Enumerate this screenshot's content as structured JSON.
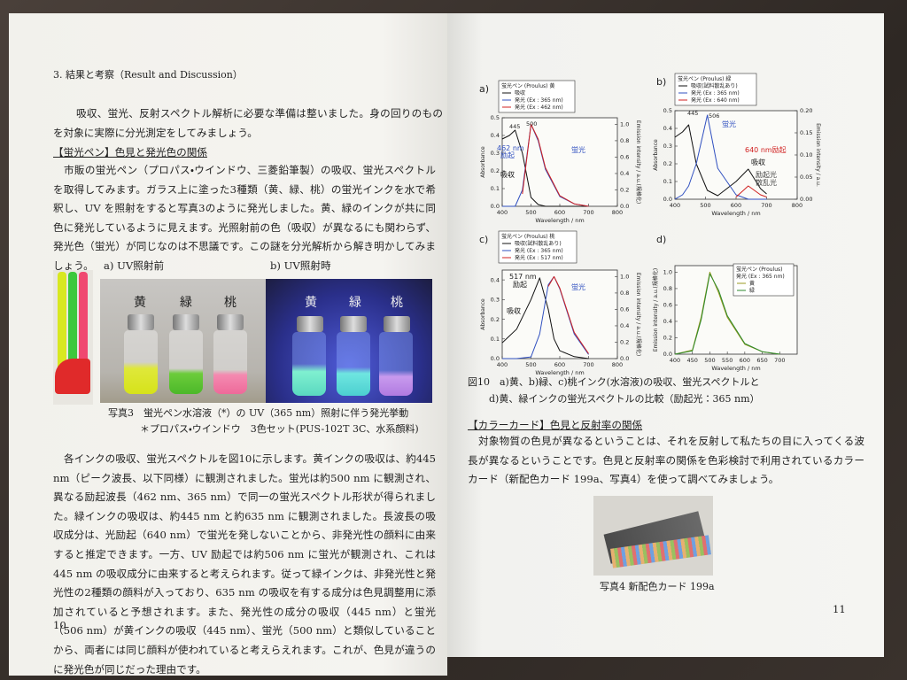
{
  "left_page": {
    "heading": "3. 結果と考察（Result and Discussion）",
    "intro": "吸収、蛍光、反射スペクトル解析に必要な準備は整いました。身の回りのものを対象に実際に分光測定をしてみましょう。",
    "section_title": "【蛍光ペン】色見と発光色の関係",
    "section_body": "市販の蛍光ペン（プロパス・ウインドウ、三菱鉛筆製）の吸収、蛍光スペクトルを取得してみます。ガラス上に塗った3種類（黄、緑、桃）の蛍光インクを水で希釈し、UV を照射をすると写真3のように発光しました。黄、緑のインクが共に同色に発光しているように見えます。光照射前の色（吸収）が異なるにも関わらず、発光色（蛍光）が同じなのは不思議です。この謎を分光解析から解き明かしてみましょう。",
    "photo3": {
      "label_a": "a) UV照射前",
      "label_b": "b) UV照射時",
      "bottles": [
        "黄",
        "緑",
        "桃"
      ],
      "caption": [
        "写真3　蛍光ペン水溶液（*）の UV（365 nm）照射に伴う発光挙動",
        "＊プロパス・ウインドウ　3色セット(PUS-102T 3C、水系顔料)"
      ]
    },
    "body": "各インクの吸収、蛍光スペクトルを図10に示します。黄インクの吸収は、約445 nm（ピーク波長、以下同様）に観測されました。蛍光は約500 nm に観測され、異なる励起波長（462 nm、365 nm）で同一の蛍光スペクトル形状が得られました。緑インクの吸収は、約445 nm と約635 nm に観測されました。長波長の吸収成分は、光励起（640 nm）で蛍光を発しないことから、非発光性の顔料に由来すると推定できます。一方、UV 励起では約506 nm に蛍光が観測され、これは445 nm の吸収成分に由来すると考えられます。従って緑インクは、非発光性と発光性の2種類の顔料が入っており、635 nm の吸収を有する成分は色見調整用に添加されていると予想されます。また、発光性の成分の吸収（445 nm）と蛍光（506 nm）が黄インクの吸収（445 nm）、蛍光（500 nm）と類似していることから、両者には同じ顔料が使われていると考えらえれます。これが、色見が違うのに発光色が同じだった理由です。",
    "page_number": "10"
  },
  "right_page": {
    "figure_caption": [
      "図10　a)黄、b)緑、c)桃インク(水溶液)の吸収、蛍光スペクトルと",
      "d)黄、緑インクの蛍光スペクトルの比較（励起光：365 nm）"
    ],
    "section_title": "【カラーカード】色見と反射率の関係",
    "section_body": "対象物質の色見が異なるということは、それを反射して私たちの目に入ってくる波長が異なるということです。色見と反射率の関係を色彩検討で利用されているカラーカード（新配色カード 199a、写真4）を使って調べてみましょう。",
    "photo4_caption": "写真4 新配色カード 199a",
    "page_number": "11"
  },
  "chart_data": [
    {
      "type": "line",
      "panel": "a)",
      "legend_title": [
        "蛍光ペン (Proulus) 黄"
      ],
      "xlabel": "Wavelength / nm",
      "ylabel": "Absorbance",
      "y2label": "Emission intensity / a.u.(規格化)",
      "xlim": [
        400,
        800
      ],
      "xticks": [
        400,
        500,
        600,
        700,
        800
      ],
      "ylim": [
        0,
        0.5
      ],
      "yticks": [
        {
          "value": 0,
          "label": "0.0"
        },
        0.1,
        0.2,
        0.3,
        0.4,
        0.5
      ],
      "y2lim": [
        0,
        1.08
      ],
      "y2ticks": [
        {
          "value": 0,
          "label": "0.0"
        },
        0.2,
        0.4,
        0.6,
        0.8,
        {
          "value": 1,
          "label": "1.0"
        }
      ],
      "x": [
        400,
        425,
        445,
        470,
        500,
        525,
        550,
        600,
        650,
        700
      ],
      "series": [
        {
          "name": "吸収",
          "color": "#111111",
          "values": [
            0.38,
            0.4,
            0.43,
            0.3,
            0.05,
            0.01,
            0,
            0,
            0,
            0
          ]
        },
        {
          "name": "発光 (Ex : 365 nm)",
          "color": "#3050c0",
          "axis": "y2",
          "values": [
            0,
            0,
            0,
            0.2,
            1.0,
            0.8,
            0.45,
            0.12,
            0.03,
            0
          ]
        },
        {
          "name": "発光 (Ex : 462 nm)",
          "color": "#d02020",
          "axis": "y2",
          "values": [
            null,
            null,
            null,
            0.15,
            1.0,
            0.82,
            0.47,
            0.13,
            0.03,
            0
          ]
        }
      ],
      "annotations": [
        {
          "text": "445",
          "color": "#222222"
        },
        {
          "text": "500",
          "color": "#222222"
        },
        {
          "text": "462 nm",
          "color": "#3050c0"
        },
        {
          "text": "励起",
          "color": "#3050c0"
        },
        {
          "text": "蛍光",
          "color": "#3050c0"
        },
        {
          "text": "吸収",
          "color": "#111111"
        }
      ]
    },
    {
      "type": "line",
      "panel": "b)",
      "legend_title": [
        "蛍光ペン (Proulus) 緑"
      ],
      "xlabel": "Wavelength / nm",
      "ylabel": "Absorbance",
      "y2label": "Emission intensity / a.u.",
      "xlim": [
        400,
        800
      ],
      "xticks": [
        400,
        500,
        600,
        700,
        800
      ],
      "ylim": [
        0,
        0.5
      ],
      "yticks": [
        {
          "value": 0,
          "label": "0.0"
        },
        0.1,
        0.2,
        0.3,
        0.4,
        0.5
      ],
      "y2lim": [
        0,
        0.2
      ],
      "y2ticks": [
        {
          "value": 0,
          "label": "0.00"
        },
        0.05,
        {
          "value": 0.1,
          "label": "0.10"
        },
        0.15,
        {
          "value": 0.2,
          "label": "0.20"
        }
      ],
      "x": [
        400,
        425,
        445,
        470,
        506,
        540,
        600,
        640,
        680,
        700
      ],
      "series": [
        {
          "name": "吸収(試料散乱あり)",
          "color": "#111111",
          "values": [
            0.35,
            0.38,
            0.42,
            0.2,
            0.05,
            0.02,
            0.1,
            0.17,
            0.06,
            0.03
          ]
        },
        {
          "name": "発光 (Ex : 365 nm)",
          "color": "#3050c0",
          "axis": "y2",
          "values": [
            0,
            0.01,
            0.03,
            0.08,
            0.19,
            0.07,
            0.01,
            0,
            0,
            0
          ]
        },
        {
          "name": "発光 (Ex : 640 nm)",
          "color": "#d02020",
          "axis": "y2",
          "values": [
            null,
            null,
            null,
            null,
            null,
            null,
            0.005,
            0.03,
            0.01,
            0.005
          ]
        }
      ],
      "annotations": [
        {
          "text": "445",
          "color": "#222222"
        },
        {
          "text": "506",
          "color": "#222222"
        },
        {
          "text": "蛍光",
          "color": "#3050c0"
        },
        {
          "text": "640 nm励起",
          "color": "#d02020"
        },
        {
          "text": "吸収",
          "color": "#111111"
        },
        {
          "text": "励起光",
          "color": "#444444"
        },
        {
          "text": "散乱光",
          "color": "#444444"
        }
      ]
    },
    {
      "type": "line",
      "panel": "c)",
      "legend_title": [
        "蛍光ペン (Proulus) 桃"
      ],
      "xlabel": "Wavelength / nm",
      "ylabel": "Absorbance",
      "y2label": "Emission intensity / a.u.(規格化)",
      "xlim": [
        400,
        800
      ],
      "xticks": [
        400,
        500,
        600,
        700,
        800
      ],
      "ylim": [
        0,
        0.45
      ],
      "yticks": [
        {
          "value": 0,
          "label": "0.0"
        },
        0.1,
        0.2,
        0.3,
        0.4
      ],
      "y2lim": [
        0,
        1.08
      ],
      "y2ticks": [
        {
          "value": 0,
          "label": "0.0"
        },
        0.2,
        0.4,
        0.6,
        0.8,
        {
          "value": 1,
          "label": "1.0"
        }
      ],
      "x": [
        400,
        450,
        500,
        530,
        560,
        580,
        600,
        650,
        700
      ],
      "series": [
        {
          "name": "吸収(試料散乱あり)",
          "color": "#111111",
          "values": [
            0.08,
            0.15,
            0.3,
            0.41,
            0.25,
            0.1,
            0.04,
            0.01,
            0
          ]
        },
        {
          "name": "発光 (Ex : 365 nm)",
          "color": "#3050c0",
          "axis": "y2",
          "values": [
            0,
            0,
            0.02,
            0.3,
            0.9,
            1.0,
            0.85,
            0.3,
            0.05
          ]
        },
        {
          "name": "発光 (Ex : 517 nm)",
          "color": "#d02020",
          "axis": "y2",
          "values": [
            null,
            null,
            null,
            null,
            0.88,
            1.0,
            0.86,
            0.32,
            0.06
          ]
        }
      ],
      "annotations": [
        {
          "text": "517 nm",
          "color": "#222222"
        },
        {
          "text": "励起",
          "color": "#222222"
        },
        {
          "text": "蛍光",
          "color": "#3050c0"
        },
        {
          "text": "吸収",
          "color": "#111111"
        }
      ]
    },
    {
      "type": "line",
      "panel": "d)",
      "legend_title": [
        "蛍光ペン (Proulus)",
        "発光 (Ex : 365 nm)"
      ],
      "xlabel": "Wavelength / nm",
      "ylabel": "Emission intensity / a.u.(規格化)",
      "xlim": [
        400,
        750
      ],
      "xticks": [
        400,
        450,
        500,
        550,
        600,
        650,
        700
      ],
      "ylim": [
        0,
        1.08
      ],
      "yticks": [
        {
          "value": 0,
          "label": "0.0"
        },
        0.2,
        0.4,
        0.6,
        0.8,
        {
          "value": 1,
          "label": "1.0"
        }
      ],
      "x": [
        400,
        450,
        475,
        500,
        525,
        550,
        600,
        650,
        700
      ],
      "series": [
        {
          "name": "黄",
          "color": "#9a9a20",
          "values": [
            0,
            0.05,
            0.45,
            1.0,
            0.75,
            0.45,
            0.12,
            0.03,
            0
          ]
        },
        {
          "name": "緑",
          "color": "#2d8a2d",
          "values": [
            0,
            0.04,
            0.42,
            0.98,
            0.78,
            0.47,
            0.13,
            0.03,
            0
          ]
        }
      ],
      "annotations": []
    }
  ]
}
